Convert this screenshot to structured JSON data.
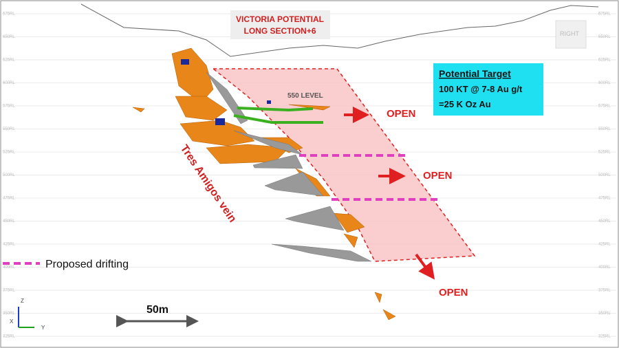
{
  "title": {
    "line1": "VICTORIA POTENTIAL",
    "line2": "LONG SECTION+6"
  },
  "target": {
    "heading": "Potential Target",
    "line1": "100 KT @ 7-8  Au g/t",
    "line2": "=25 K Oz Au"
  },
  "level_label": "550 LEVEL",
  "open_labels": [
    "OPEN",
    "OPEN",
    "OPEN"
  ],
  "vein_label": "Tres Amigos vein",
  "legend": {
    "label": "Proposed drifting"
  },
  "scale_label": "50m",
  "view_label": "RIGHT",
  "axes": {
    "z": "Z",
    "x": "X",
    "y": "Y"
  },
  "levels": [
    "675RL",
    "650RL",
    "625RL",
    "600RL",
    "575RL",
    "550RL",
    "525RL",
    "500RL",
    "475RL",
    "450RL",
    "425RL",
    "400RL",
    "375RL",
    "350RL",
    "325RL"
  ]
}
